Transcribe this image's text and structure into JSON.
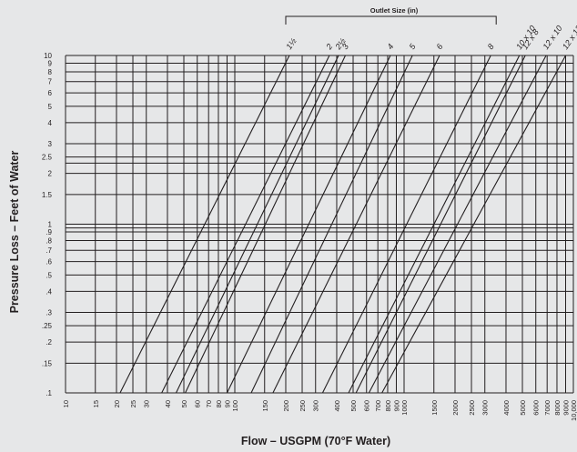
{
  "chart_data": {
    "type": "line",
    "title": "",
    "xlabel": "Flow – USGPM (70°F Water)",
    "ylabel": "Pressure Loss – Feet of Water",
    "header_label": "Outlet Size (in)",
    "x_scale": "log",
    "y_scale": "log",
    "xlim": [
      10,
      10000
    ],
    "ylim": [
      0.1,
      10
    ],
    "grid": true,
    "x_ticks": [
      {
        "v": 10,
        "label": "10"
      },
      {
        "v": 15,
        "label": "15"
      },
      {
        "v": 20,
        "label": "20"
      },
      {
        "v": 25,
        "label": "25"
      },
      {
        "v": 30,
        "label": "30"
      },
      {
        "v": 40,
        "label": "40"
      },
      {
        "v": 50,
        "label": "50"
      },
      {
        "v": 60,
        "label": "60"
      },
      {
        "v": 70,
        "label": "70"
      },
      {
        "v": 80,
        "label": "80"
      },
      {
        "v": 90,
        "label": "90"
      },
      {
        "v": 100,
        "label": "100"
      },
      {
        "v": 150,
        "label": "150"
      },
      {
        "v": 200,
        "label": "200"
      },
      {
        "v": 250,
        "label": "250"
      },
      {
        "v": 300,
        "label": "300"
      },
      {
        "v": 400,
        "label": "400"
      },
      {
        "v": 500,
        "label": "500"
      },
      {
        "v": 600,
        "label": "600"
      },
      {
        "v": 700,
        "label": "700"
      },
      {
        "v": 800,
        "label": "800"
      },
      {
        "v": 900,
        "label": "900"
      },
      {
        "v": 1000,
        "label": "1000"
      },
      {
        "v": 1500,
        "label": "1500"
      },
      {
        "v": 2000,
        "label": "2000"
      },
      {
        "v": 2500,
        "label": "2500"
      },
      {
        "v": 3000,
        "label": "3000"
      },
      {
        "v": 4000,
        "label": "4000"
      },
      {
        "v": 5000,
        "label": "5000"
      },
      {
        "v": 6000,
        "label": "6000"
      },
      {
        "v": 7000,
        "label": "7000"
      },
      {
        "v": 8000,
        "label": "8000"
      },
      {
        "v": 9000,
        "label": "9000"
      },
      {
        "v": 10000,
        "label": "10,000"
      }
    ],
    "y_ticks": [
      {
        "v": 0.1,
        "label": ".1"
      },
      {
        "v": 0.15,
        "label": ".15"
      },
      {
        "v": 0.2,
        "label": ".2"
      },
      {
        "v": 0.25,
        "label": ".25"
      },
      {
        "v": 0.3,
        "label": ".3"
      },
      {
        "v": 0.4,
        "label": ".4"
      },
      {
        "v": 0.5,
        "label": ".5"
      },
      {
        "v": 0.6,
        "label": ".6"
      },
      {
        "v": 0.7,
        "label": ".7"
      },
      {
        "v": 0.8,
        "label": ".8"
      },
      {
        "v": 0.9,
        "label": ".9"
      },
      {
        "v": 1,
        "label": "1"
      },
      {
        "v": 1.5,
        "label": "1.5"
      },
      {
        "v": 2,
        "label": "2"
      },
      {
        "v": 2.5,
        "label": "2.5"
      },
      {
        "v": 3,
        "label": "3"
      },
      {
        "v": 4,
        "label": "4"
      },
      {
        "v": 5,
        "label": "5"
      },
      {
        "v": 6,
        "label": "6"
      },
      {
        "v": 7,
        "label": "7"
      },
      {
        "v": 8,
        "label": "8"
      },
      {
        "v": 9,
        "label": "9"
      },
      {
        "v": 10,
        "label": "10"
      }
    ],
    "y_extra_gridlines": [
      0.95,
      2.3
    ],
    "bracket_range": [
      200,
      3500
    ],
    "series": [
      {
        "name": "1½",
        "x": [
          21,
          210
        ],
        "y": [
          0.1,
          10
        ]
      },
      {
        "name": "2",
        "x": [
          37,
          362
        ],
        "y": [
          0.1,
          10
        ]
      },
      {
        "name": "2½",
        "x": [
          45,
          410
        ],
        "y": [
          0.1,
          10
        ]
      },
      {
        "name": "3",
        "x": [
          51,
          450
        ],
        "y": [
          0.1,
          10
        ]
      },
      {
        "name": "4",
        "x": [
          90,
          830
        ],
        "y": [
          0.1,
          10
        ]
      },
      {
        "name": "5",
        "x": [
          125,
          1120
        ],
        "y": [
          0.1,
          10
        ]
      },
      {
        "name": "6",
        "x": [
          168,
          1620
        ],
        "y": [
          0.1,
          10
        ]
      },
      {
        "name": "8",
        "x": [
          330,
          3250
        ],
        "y": [
          0.1,
          10
        ]
      },
      {
        "name": "10 x 10",
        "x": [
          470,
          4800
        ],
        "y": [
          0.1,
          10
        ]
      },
      {
        "name": "12 x 8",
        "x": [
          520,
          5200
        ],
        "y": [
          0.1,
          10
        ]
      },
      {
        "name": "12 x 10",
        "x": [
          620,
          6900
        ],
        "y": [
          0.1,
          10
        ]
      },
      {
        "name": "12 x 12",
        "x": [
          740,
          9000
        ],
        "y": [
          0.1,
          10
        ]
      }
    ]
  }
}
